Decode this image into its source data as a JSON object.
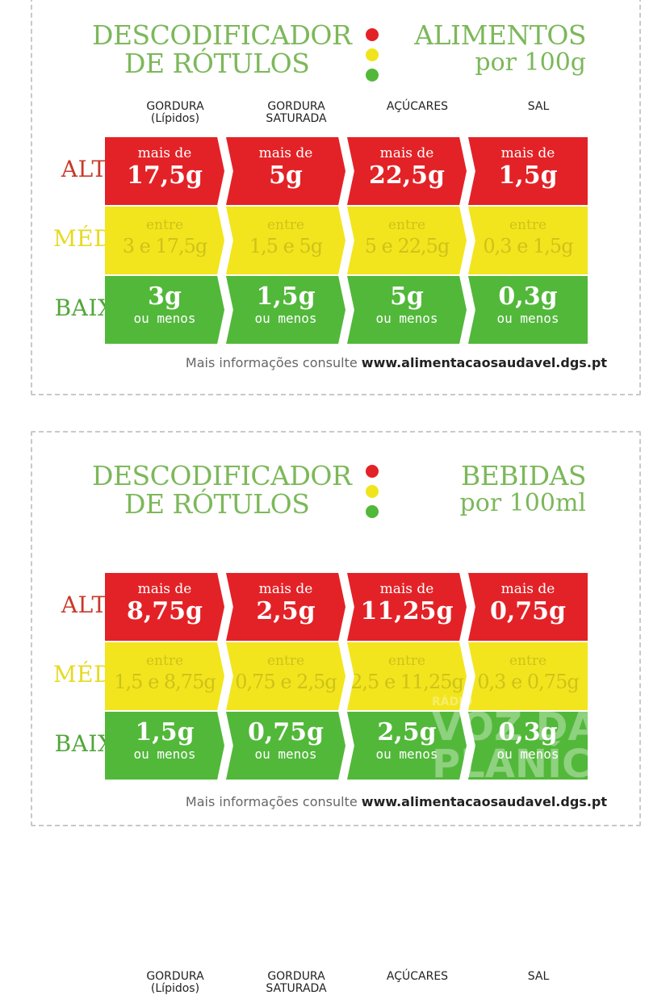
{
  "cards": [
    {
      "title_line1": "DESCODIFICADOR",
      "title_line2": "DE RÓTULOS",
      "right_line1": "ALIMENTOS",
      "right_line2": "por 100g",
      "columns": [
        "GORDURA\n(Lípidos)",
        "GORDURA\nSATURADA",
        "AÇÚCARES",
        "SAL"
      ],
      "rows": {
        "alto": "ALTO",
        "medio": "MÉDIO",
        "baixo": "BAIXO"
      },
      "alto": [
        {
          "prefix": "mais de",
          "value": "17,5g"
        },
        {
          "prefix": "mais de",
          "value": "5g"
        },
        {
          "prefix": "mais de",
          "value": "22,5g"
        },
        {
          "prefix": "mais de",
          "value": "1,5g"
        }
      ],
      "medio": [
        {
          "prefix": "entre",
          "range": "3 e 17,5g"
        },
        {
          "prefix": "entre",
          "range": "1,5 e 5g"
        },
        {
          "prefix": "entre",
          "range": "5 e 22,5g"
        },
        {
          "prefix": "entre",
          "range": "0,3 e 1,5g"
        }
      ],
      "baixo": [
        {
          "value": "3g",
          "suffix": "ou menos"
        },
        {
          "value": "1,5g",
          "suffix": "ou menos"
        },
        {
          "value": "5g",
          "suffix": "ou menos"
        },
        {
          "value": "0,3g",
          "suffix": "ou menos"
        }
      ],
      "footer_text": "Mais informações consulte",
      "footer_url": "www.alimentacaosaudavel.dgs.pt"
    },
    {
      "title_line1": "DESCODIFICADOR",
      "title_line2": "DE RÓTULOS",
      "right_line1": "BEBIDAS",
      "right_line2": "por 100ml",
      "columns": [
        "GORDURA\n(Lípidos)",
        "GORDURA\nSATURADA",
        "AÇÚCARES",
        "SAL"
      ],
      "rows": {
        "alto": "ALTO",
        "medio": "MÉDIO",
        "baixo": "BAIXO"
      },
      "alto": [
        {
          "prefix": "mais de",
          "value": "8,75g"
        },
        {
          "prefix": "mais de",
          "value": "2,5g"
        },
        {
          "prefix": "mais de",
          "value": "11,25g"
        },
        {
          "prefix": "mais de",
          "value": "0,75g"
        }
      ],
      "medio": [
        {
          "prefix": "entre",
          "range": "1,5 e 8,75g"
        },
        {
          "prefix": "entre",
          "range": "0,75 e 2,5g"
        },
        {
          "prefix": "entre",
          "range": "2,5 e 11,25g"
        },
        {
          "prefix": "entre",
          "range": "0,3 e 0,75g"
        }
      ],
      "baixo": [
        {
          "value": "1,5g",
          "suffix": "ou menos"
        },
        {
          "value": "0,75g",
          "suffix": "ou menos"
        },
        {
          "value": "2,5g",
          "suffix": "ou menos"
        },
        {
          "value": "0,3g",
          "suffix": "ou menos"
        }
      ],
      "footer_text": "Mais informações consulte",
      "footer_url": "www.alimentacaosaudavel.dgs.pt"
    }
  ],
  "watermark": {
    "small": "RÁDIO",
    "big": "VOZ DA PLANÍCIE"
  },
  "colors": {
    "green_title": "#7cb85a",
    "red": "#e32227",
    "yellow": "#f2e51d",
    "green": "#52b83a"
  }
}
